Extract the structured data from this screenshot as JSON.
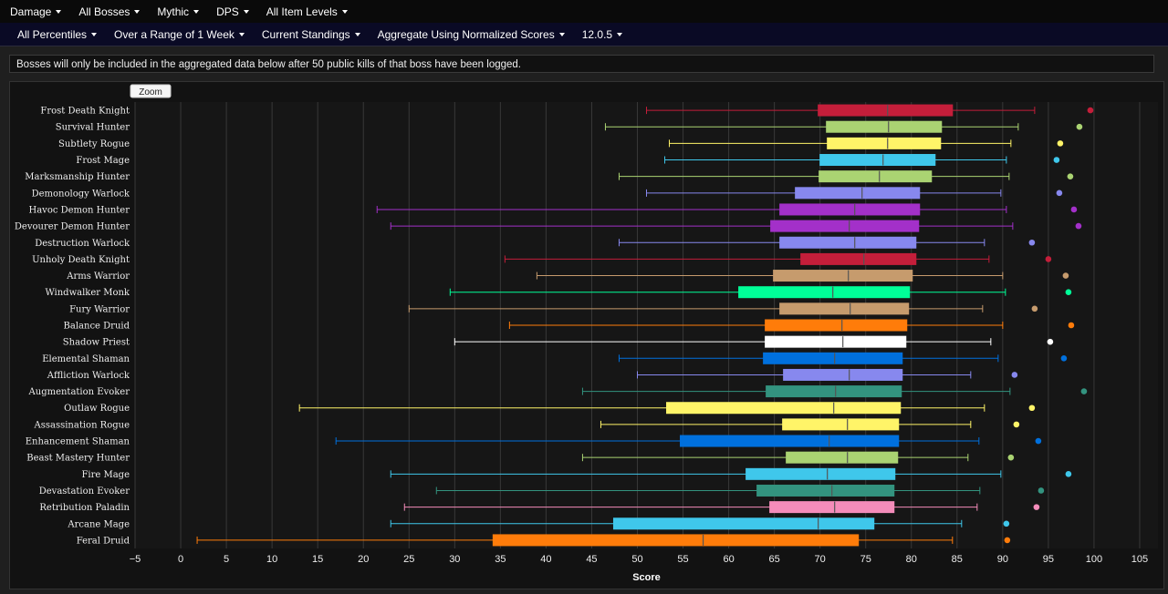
{
  "nav": {
    "primary": [
      "Damage",
      "All Bosses",
      "Mythic",
      "DPS",
      "All Item Levels"
    ],
    "secondary": [
      "All Percentiles",
      "Over a Range of 1 Week",
      "Current Standings",
      "Aggregate Using Normalized Scores",
      "12.0.5"
    ]
  },
  "notice": "Bosses will only be included in the aggregated data below after 50 public kills of that boss have been logged.",
  "chart_data": {
    "type": "boxplot",
    "zoom_label": "Zoom",
    "xlabel": "Score",
    "xlim": [
      -5,
      107
    ],
    "xticks": [
      -5,
      0,
      5,
      10,
      15,
      20,
      25,
      30,
      35,
      40,
      45,
      50,
      55,
      60,
      65,
      70,
      75,
      80,
      85,
      90,
      95,
      100,
      105
    ],
    "grid": true,
    "specs": [
      {
        "name": "Frost Death Knight",
        "color": "#C41E3A",
        "min": 51,
        "q1": 69.8,
        "median": 77.4,
        "q3": 84.5,
        "max": 93.5,
        "top": 99.6
      },
      {
        "name": "Survival Hunter",
        "color": "#AAD372",
        "min": 46.5,
        "q1": 70.7,
        "median": 77.5,
        "q3": 83.3,
        "max": 91.7,
        "top": 98.4
      },
      {
        "name": "Subtlety Rogue",
        "color": "#FFF468",
        "min": 53.5,
        "q1": 70.8,
        "median": 77.4,
        "q3": 83.2,
        "max": 90.9,
        "top": 96.3
      },
      {
        "name": "Frost Mage",
        "color": "#3FC7EB",
        "min": 53,
        "q1": 70,
        "median": 76.9,
        "q3": 82.6,
        "max": 90.4,
        "top": 95.9
      },
      {
        "name": "Marksmanship Hunter",
        "color": "#AAD372",
        "min": 48,
        "q1": 69.9,
        "median": 76.5,
        "q3": 82.2,
        "max": 90.7,
        "top": 97.4
      },
      {
        "name": "Demonology Warlock",
        "color": "#8788EE",
        "min": 51,
        "q1": 67.3,
        "median": 74.6,
        "q3": 80.9,
        "max": 89.8,
        "top": 96.2
      },
      {
        "name": "Havoc Demon Hunter",
        "color": "#A330C9",
        "min": 21.5,
        "q1": 65.6,
        "median": 73.8,
        "q3": 80.9,
        "max": 90.4,
        "top": 97.8
      },
      {
        "name": "Devourer Demon Hunter",
        "color": "#A330C9",
        "min": 23,
        "q1": 64.6,
        "median": 73.2,
        "q3": 80.8,
        "max": 91.1,
        "top": 98.3
      },
      {
        "name": "Destruction Warlock",
        "color": "#8788EE",
        "min": 48,
        "q1": 65.6,
        "median": 73.8,
        "q3": 80.5,
        "max": 88,
        "top": 93.2
      },
      {
        "name": "Unholy Death Knight",
        "color": "#C41E3A",
        "min": 35.5,
        "q1": 67.9,
        "median": 74.8,
        "q3": 80.5,
        "max": 88.5,
        "top": 95
      },
      {
        "name": "Arms Warrior",
        "color": "#C69B6D",
        "min": 39,
        "q1": 64.9,
        "median": 73.1,
        "q3": 80.1,
        "max": 90,
        "top": 96.9
      },
      {
        "name": "Windwalker Monk",
        "color": "#00FF98",
        "min": 29.5,
        "q1": 61.1,
        "median": 71.4,
        "q3": 79.8,
        "max": 90.3,
        "top": 97.2
      },
      {
        "name": "Fury Warrior",
        "color": "#C69B6D",
        "min": 25,
        "q1": 65.6,
        "median": 73.3,
        "q3": 79.7,
        "max": 87.8,
        "top": 93.5
      },
      {
        "name": "Balance Druid",
        "color": "#FF7C0A",
        "min": 36,
        "q1": 64,
        "median": 72.4,
        "q3": 79.5,
        "max": 90,
        "top": 97.5
      },
      {
        "name": "Shadow Priest",
        "color": "#FFFFFF",
        "min": 30,
        "q1": 64,
        "median": 72.5,
        "q3": 79.4,
        "max": 88.7,
        "top": 95.2
      },
      {
        "name": "Elemental Shaman",
        "color": "#0070DD",
        "min": 48,
        "q1": 63.8,
        "median": 71.6,
        "q3": 79,
        "max": 89.5,
        "top": 96.7
      },
      {
        "name": "Affliction Warlock",
        "color": "#8788EE",
        "min": 50,
        "q1": 66,
        "median": 73.2,
        "q3": 79,
        "max": 86.5,
        "top": 91.3
      },
      {
        "name": "Augmentation Evoker",
        "color": "#33937F",
        "min": 44,
        "q1": 64.1,
        "median": 71.7,
        "q3": 78.9,
        "max": 90.8,
        "top": 98.9
      },
      {
        "name": "Outlaw Rogue",
        "color": "#FFF468",
        "min": 13,
        "q1": 53.2,
        "median": 71.5,
        "q3": 78.8,
        "max": 88,
        "top": 93.2
      },
      {
        "name": "Assassination Rogue",
        "color": "#FFF468",
        "min": 46,
        "q1": 65.9,
        "median": 73,
        "q3": 78.6,
        "max": 86.5,
        "top": 91.5
      },
      {
        "name": "Enhancement Shaman",
        "color": "#0070DD",
        "min": 17,
        "q1": 54.7,
        "median": 71,
        "q3": 78.6,
        "max": 87.4,
        "top": 93.9
      },
      {
        "name": "Beast Mastery Hunter",
        "color": "#AAD372",
        "min": 44,
        "q1": 66.3,
        "median": 73,
        "q3": 78.5,
        "max": 86.2,
        "top": 90.9
      },
      {
        "name": "Fire Mage",
        "color": "#3FC7EB",
        "min": 23,
        "q1": 61.9,
        "median": 70.8,
        "q3": 78.2,
        "max": 89.8,
        "top": 97.2
      },
      {
        "name": "Devastation Evoker",
        "color": "#33937F",
        "min": 28,
        "q1": 63.1,
        "median": 71.3,
        "q3": 78.1,
        "max": 87.5,
        "top": 94.2
      },
      {
        "name": "Retribution Paladin",
        "color": "#F48CBA",
        "min": 24.5,
        "q1": 64.5,
        "median": 71.6,
        "q3": 78.1,
        "max": 87.2,
        "top": 93.7
      },
      {
        "name": "Arcane Mage",
        "color": "#3FC7EB",
        "min": 23,
        "q1": 47.4,
        "median": 69.8,
        "q3": 75.9,
        "max": 85.5,
        "top": 90.4
      },
      {
        "name": "Feral Druid",
        "color": "#FF7C0A",
        "min": 1.8,
        "q1": 34.2,
        "median": 57.2,
        "q3": 74.2,
        "max": 84.5,
        "top": 90.5
      }
    ]
  }
}
